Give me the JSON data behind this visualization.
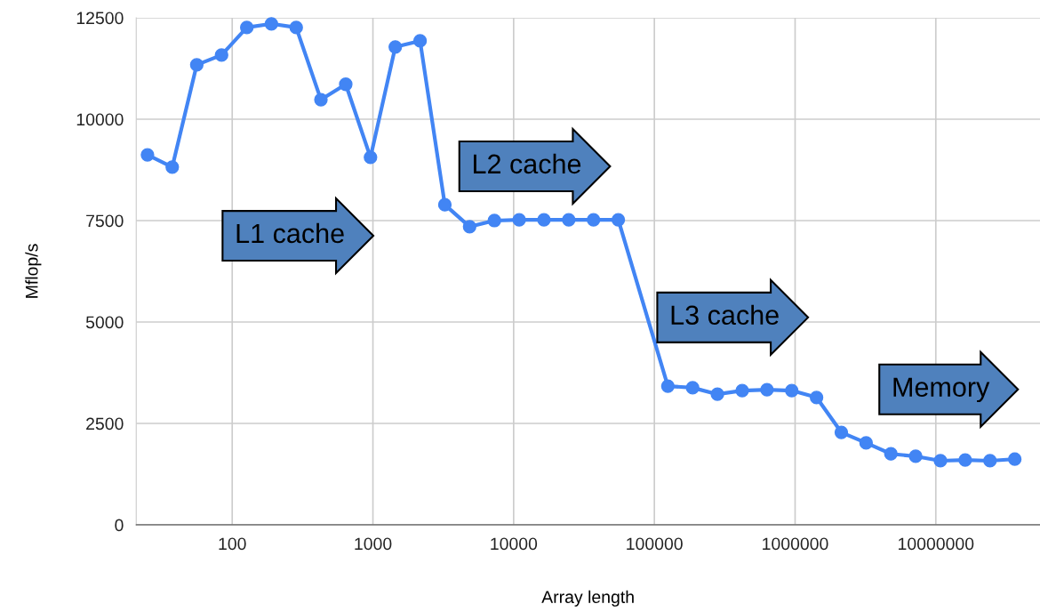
{
  "chart_data": {
    "type": "line",
    "xlabel": "Array length",
    "ylabel": "Mflop/s",
    "log": "x",
    "grid": true,
    "marker": "circle",
    "line_style": "solid",
    "xlim": [
      20.8,
      55000000
    ],
    "xticks": [
      100,
      1000,
      10000,
      100000,
      1000000,
      10000000
    ],
    "ylim": [
      0,
      12500
    ],
    "yticks": [
      0,
      2500,
      5000,
      7500,
      10000,
      12500
    ],
    "series": [
      {
        "color": "#4285f4",
        "x": [
          25,
          37.5,
          56,
          84,
          127,
          190,
          285,
          427,
          641,
          961,
          1442,
          2163,
          3244,
          4866,
          7298,
          10948,
          16422,
          24632,
          36949,
          55423,
          124702,
          187052,
          280579,
          420868,
          631302,
          946953,
          1420429,
          2130644,
          3195966,
          4793949,
          7190924,
          10786386,
          16179578,
          24269368,
          36404052
        ],
        "values": [
          9120,
          8820,
          11340,
          11580,
          12260,
          12350,
          12260,
          10480,
          10860,
          9060,
          11780,
          11930,
          7890,
          7350,
          7500,
          7520,
          7520,
          7520,
          7520,
          7520,
          3420,
          3380,
          3220,
          3310,
          3330,
          3310,
          3140,
          2280,
          2020,
          1750,
          1690,
          1580,
          1600,
          1580,
          1620
        ]
      }
    ],
    "annotations": [
      "L1 cache",
      "L2 cache",
      "L3 cache",
      "Memory"
    ]
  }
}
